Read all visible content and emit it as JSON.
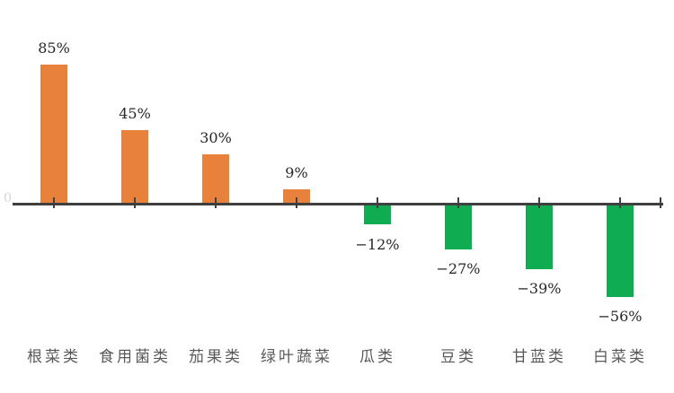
{
  "chart_data": {
    "type": "bar",
    "title": "",
    "xlabel": "",
    "ylabel": "",
    "unit": "%",
    "categories": [
      "根菜类",
      "食用菌类",
      "茄果类",
      "绿叶蔬菜",
      "瓜类",
      "豆类",
      "甘蓝类",
      "白菜类"
    ],
    "values": [
      85,
      45,
      30,
      9,
      -12,
      -27,
      -39,
      -56
    ],
    "value_labels": [
      "85%",
      "45%",
      "30%",
      "9%",
      "−12%",
      "−27%",
      "−39%",
      "−56%"
    ],
    "baseline_label": "0",
    "ylim": [
      -60,
      90
    ],
    "grid": false,
    "legend": false,
    "colors": {
      "positive_bar": "#E8813C",
      "negative_bar": "#0FAC52",
      "axis": "#3F3F3F",
      "value_label": "#262626",
      "category_label": "#595959",
      "zero_label": "#D4D4D4"
    }
  }
}
